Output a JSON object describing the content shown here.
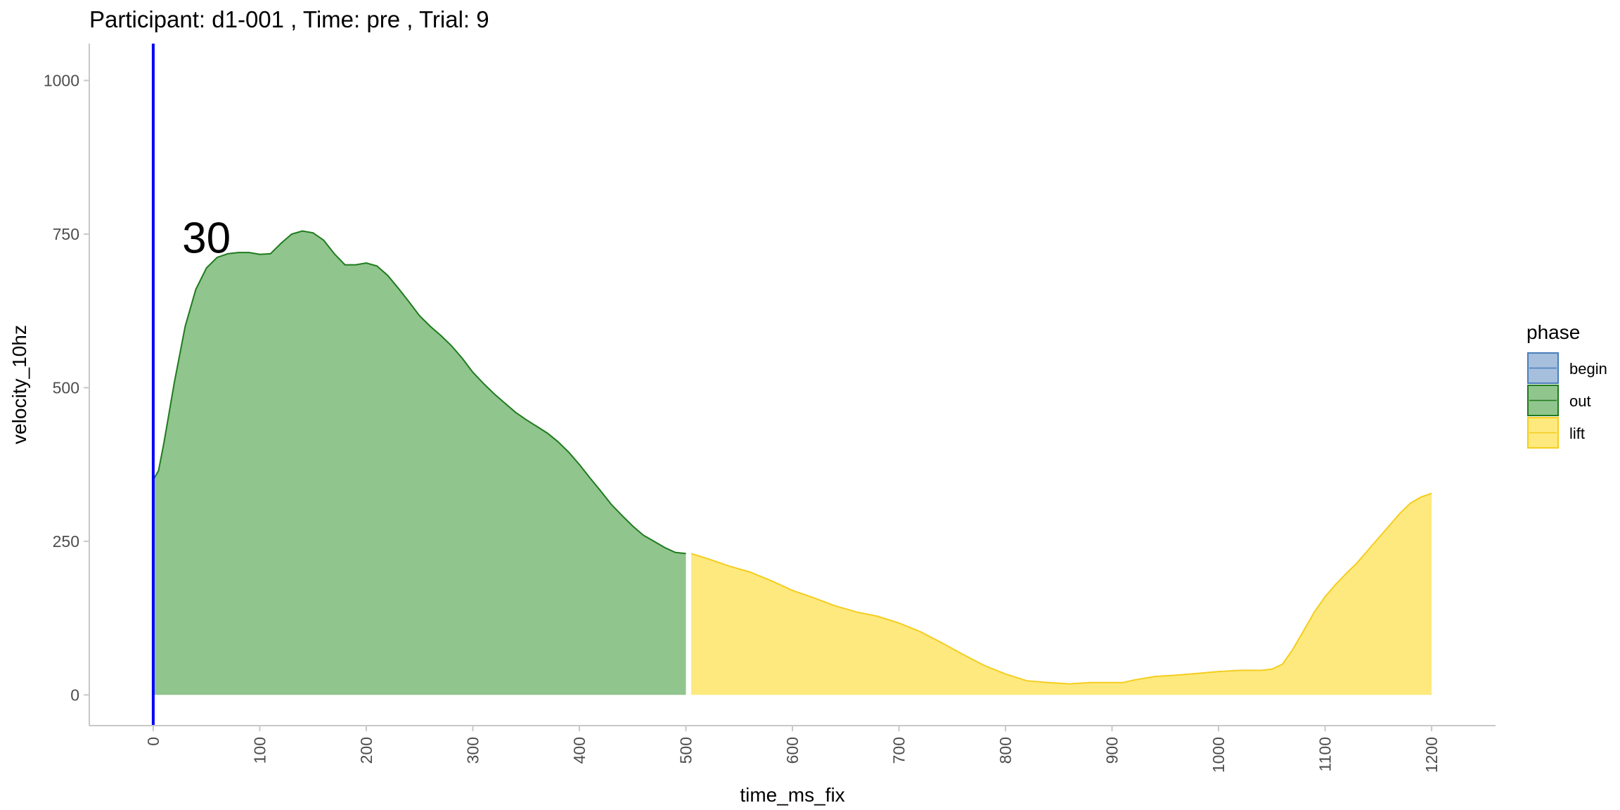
{
  "chart_data": {
    "type": "area",
    "title": "Participant:  d1-001 , Time: pre , Trial:  9",
    "xlabel": "time_ms_fix",
    "ylabel": "velocity_10hz",
    "xlim": [
      -60,
      1260
    ],
    "ylim": [
      -50,
      1060
    ],
    "x_ticks": [
      0,
      100,
      200,
      300,
      400,
      500,
      600,
      700,
      800,
      900,
      1000,
      1100,
      1200
    ],
    "y_ticks": [
      0,
      250,
      500,
      750,
      1000
    ],
    "grid": false,
    "vline": {
      "x": 0,
      "color": "#0000ff"
    },
    "annotation": {
      "text": "30",
      "x": 50,
      "y": 745
    },
    "legend": {
      "title": "phase",
      "position": "right",
      "entries": [
        {
          "label": "begin",
          "fill": "#a5bfdc",
          "stroke": "#4a7ebb"
        },
        {
          "label": "out",
          "fill": "#90c58d",
          "stroke": "#1e7b1e"
        },
        {
          "label": "lift",
          "fill": "#fde97e",
          "stroke": "#f5cd1e"
        }
      ]
    },
    "series": [
      {
        "name": "out",
        "fill": "#90c58d",
        "stroke": "#1e7b1e",
        "x": [
          0,
          5,
          10,
          20,
          30,
          40,
          50,
          60,
          70,
          80,
          90,
          100,
          110,
          120,
          130,
          140,
          150,
          160,
          170,
          180,
          190,
          200,
          210,
          220,
          230,
          240,
          250,
          260,
          270,
          280,
          290,
          300,
          310,
          320,
          330,
          340,
          350,
          360,
          370,
          380,
          390,
          400,
          410,
          420,
          430,
          440,
          450,
          460,
          470,
          480,
          490,
          500
        ],
        "y": [
          350,
          365,
          410,
          510,
          600,
          660,
          695,
          712,
          718,
          720,
          720,
          717,
          718,
          735,
          750,
          755,
          752,
          740,
          718,
          700,
          700,
          703,
          698,
          683,
          662,
          640,
          617,
          600,
          585,
          568,
          548,
          525,
          507,
          490,
          475,
          460,
          448,
          437,
          426,
          412,
          395,
          375,
          353,
          332,
          310,
          292,
          275,
          260,
          250,
          240,
          232,
          230
        ]
      },
      {
        "name": "lift",
        "fill": "#fde97e",
        "stroke": "#f5cd1e",
        "x": [
          505,
          520,
          540,
          560,
          580,
          600,
          620,
          640,
          660,
          680,
          700,
          720,
          740,
          760,
          780,
          800,
          820,
          840,
          860,
          880,
          900,
          910,
          920,
          940,
          960,
          980,
          1000,
          1020,
          1040,
          1050,
          1060,
          1070,
          1080,
          1090,
          1100,
          1110,
          1120,
          1130,
          1140,
          1150,
          1160,
          1170,
          1180,
          1190,
          1200
        ],
        "y": [
          230,
          222,
          210,
          200,
          186,
          170,
          158,
          145,
          135,
          128,
          117,
          103,
          85,
          66,
          48,
          34,
          23,
          20,
          18,
          20,
          20,
          20,
          24,
          30,
          32,
          35,
          38,
          40,
          40,
          42,
          50,
          75,
          105,
          135,
          160,
          180,
          198,
          215,
          235,
          255,
          275,
          295,
          312,
          322,
          328
        ]
      }
    ]
  }
}
